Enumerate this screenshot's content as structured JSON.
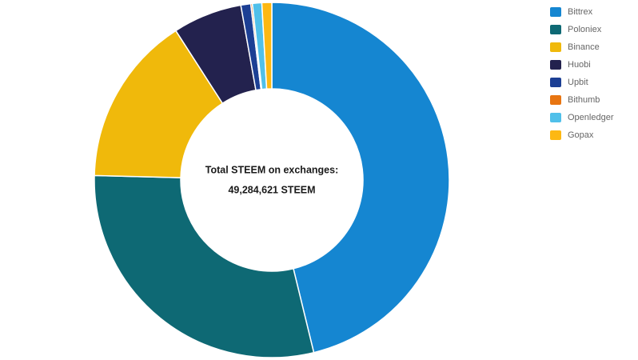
{
  "chart_data": {
    "type": "pie",
    "donut": true,
    "title": "",
    "center_label": {
      "line1": "Total STEEM on exchanges:",
      "line2": "49,284,621 STEEM"
    },
    "total_value": 49284621,
    "legend_position": "top-right",
    "grid": false,
    "series": [
      {
        "name": "Bittrex",
        "value": 22769000,
        "pct": 46.2,
        "color": "#1586d1"
      },
      {
        "name": "Poloniex",
        "value": 14391000,
        "pct": 29.2,
        "color": "#0e6974"
      },
      {
        "name": "Binance",
        "value": 7639000,
        "pct": 15.5,
        "color": "#f0b90b"
      },
      {
        "name": "Huobi",
        "value": 3105000,
        "pct": 6.3,
        "color": "#23224e"
      },
      {
        "name": "Upbit",
        "value": 443000,
        "pct": 0.9,
        "color": "#1c3f94"
      },
      {
        "name": "Bithumb",
        "value": 74000,
        "pct": 0.15,
        "color": "#e87511"
      },
      {
        "name": "Openledger",
        "value": 419000,
        "pct": 0.85,
        "color": "#50c0ea"
      },
      {
        "name": "Gopax",
        "value": 444621,
        "pct": 0.9,
        "color": "#fdb813"
      }
    ]
  }
}
